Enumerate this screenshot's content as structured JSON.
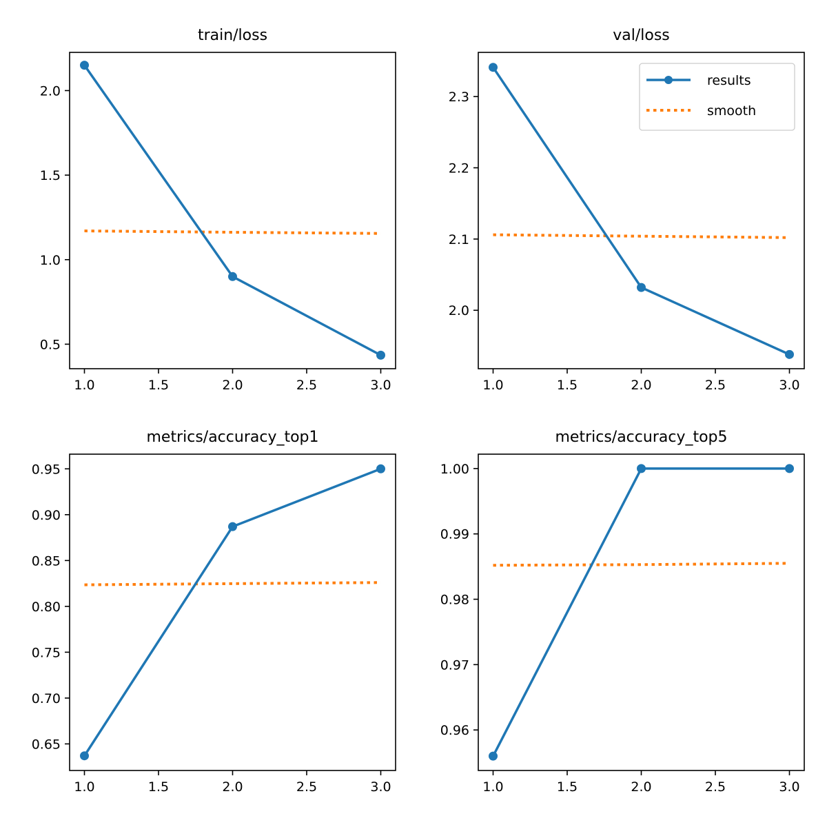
{
  "colors": {
    "results": "#1f77b4",
    "smooth": "#ff7f0e",
    "axes": "#000000",
    "background": "#ffffff"
  },
  "legend": {
    "entries": [
      "results",
      "smooth"
    ],
    "placement": "upper-right",
    "subplot_index": 1
  },
  "chart_data": [
    {
      "type": "line",
      "title": "train/loss",
      "xlabel": "",
      "ylabel": "",
      "x": [
        1.0,
        2.0,
        3.0
      ],
      "xlim": [
        0.9,
        3.1
      ],
      "ylim": [
        0.355,
        2.226
      ],
      "xticks": [
        1.0,
        1.5,
        2.0,
        2.5,
        3.0
      ],
      "xtick_labels": [
        "1.0",
        "1.5",
        "2.0",
        "2.5",
        "3.0"
      ],
      "yticks": [
        0.5,
        1.0,
        1.5,
        2.0
      ],
      "ytick_labels": [
        "0.5",
        "1.0",
        "1.5",
        "2.0"
      ],
      "grid": false,
      "series": [
        {
          "name": "results",
          "values": [
            2.15,
            0.9,
            0.435
          ],
          "style": "solid",
          "markers": true
        },
        {
          "name": "smooth",
          "values": [
            1.17,
            1.162,
            1.155
          ],
          "style": "dotted",
          "markers": false
        }
      ]
    },
    {
      "type": "line",
      "title": "val/loss",
      "xlabel": "",
      "ylabel": "",
      "x": [
        1.0,
        2.0,
        3.0
      ],
      "xlim": [
        0.9,
        3.1
      ],
      "ylim": [
        1.918,
        2.362
      ],
      "xticks": [
        1.0,
        1.5,
        2.0,
        2.5,
        3.0
      ],
      "xtick_labels": [
        "1.0",
        "1.5",
        "2.0",
        "2.5",
        "3.0"
      ],
      "yticks": [
        2.0,
        2.1,
        2.2,
        2.3
      ],
      "ytick_labels": [
        "2.0",
        "2.1",
        "2.2",
        "2.3"
      ],
      "grid": false,
      "series": [
        {
          "name": "results",
          "values": [
            2.341,
            2.032,
            1.938
          ],
          "style": "solid",
          "markers": true
        },
        {
          "name": "smooth",
          "values": [
            2.106,
            2.104,
            2.102
          ],
          "style": "dotted",
          "markers": false
        }
      ]
    },
    {
      "type": "line",
      "title": "metrics/accuracy_top1",
      "xlabel": "",
      "ylabel": "",
      "x": [
        1.0,
        2.0,
        3.0
      ],
      "xlim": [
        0.9,
        3.1
      ],
      "ylim": [
        0.621,
        0.966
      ],
      "xticks": [
        1.0,
        1.5,
        2.0,
        2.5,
        3.0
      ],
      "xtick_labels": [
        "1.0",
        "1.5",
        "2.0",
        "2.5",
        "3.0"
      ],
      "yticks": [
        0.65,
        0.7,
        0.75,
        0.8,
        0.85,
        0.9,
        0.95
      ],
      "ytick_labels": [
        "0.65",
        "0.70",
        "0.75",
        "0.80",
        "0.85",
        "0.90",
        "0.95"
      ],
      "grid": false,
      "series": [
        {
          "name": "results",
          "values": [
            0.637,
            0.887,
            0.95
          ],
          "style": "solid",
          "markers": true
        },
        {
          "name": "smooth",
          "values": [
            0.8235,
            0.8248,
            0.826
          ],
          "style": "dotted",
          "markers": false
        }
      ]
    },
    {
      "type": "line",
      "title": "metrics/accuracy_top5",
      "xlabel": "",
      "ylabel": "",
      "x": [
        1.0,
        2.0,
        3.0
      ],
      "xlim": [
        0.9,
        3.1
      ],
      "ylim": [
        0.9538,
        1.0022
      ],
      "xticks": [
        1.0,
        1.5,
        2.0,
        2.5,
        3.0
      ],
      "xtick_labels": [
        "1.0",
        "1.5",
        "2.0",
        "2.5",
        "3.0"
      ],
      "yticks": [
        0.96,
        0.97,
        0.98,
        0.99,
        1.0
      ],
      "ytick_labels": [
        "0.96",
        "0.97",
        "0.98",
        "0.99",
        "1.00"
      ],
      "grid": false,
      "series": [
        {
          "name": "results",
          "values": [
            0.956,
            1.0,
            1.0
          ],
          "style": "solid",
          "markers": true
        },
        {
          "name": "smooth",
          "values": [
            0.9852,
            0.9853,
            0.9855
          ],
          "style": "dotted",
          "markers": false
        }
      ]
    }
  ]
}
